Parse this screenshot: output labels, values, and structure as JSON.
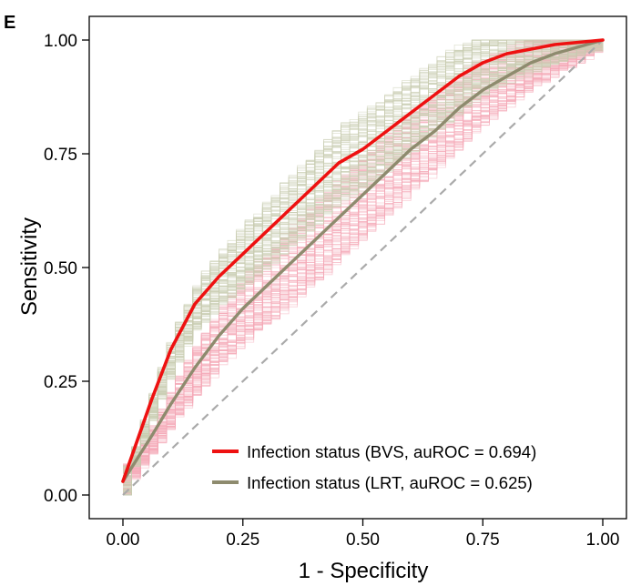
{
  "panel_label": "E",
  "colors": {
    "bvs_line": "#ee1111",
    "bvs_bootstrap": "#f4a7b6",
    "lrt_line": "#8e8b6e",
    "lrt_bootstrap": "#c9ccb0",
    "diagonal": "#aaaaaa",
    "frame": "#000000"
  },
  "chart_data": {
    "type": "line",
    "title": "",
    "xlabel": "1 - Specificity",
    "ylabel": "Sensitivity",
    "xlim": [
      0,
      1
    ],
    "ylim": [
      0,
      1
    ],
    "x_ticks": [
      0,
      0.25,
      0.5,
      0.75,
      1
    ],
    "y_ticks": [
      0,
      0.25,
      0.5,
      0.75,
      1
    ],
    "x_tick_labels": [
      "0.00",
      "0.25",
      "0.50",
      "0.75",
      "1.00"
    ],
    "y_tick_labels": [
      "0.00",
      "0.25",
      "0.50",
      "0.75",
      "1.00"
    ],
    "grid": false,
    "legend_position": "bottom-right",
    "series": [
      {
        "name": "Infection status (BVS, auROC = 0.694)",
        "color": "#ee1111",
        "x": [
          0,
          0.03,
          0.06,
          0.1,
          0.15,
          0.2,
          0.25,
          0.3,
          0.35,
          0.4,
          0.45,
          0.5,
          0.55,
          0.6,
          0.65,
          0.7,
          0.75,
          0.8,
          0.85,
          0.9,
          0.95,
          1
        ],
        "y": [
          0.03,
          0.12,
          0.21,
          0.32,
          0.42,
          0.48,
          0.53,
          0.58,
          0.63,
          0.68,
          0.73,
          0.76,
          0.8,
          0.84,
          0.88,
          0.92,
          0.95,
          0.97,
          0.98,
          0.99,
          0.995,
          1
        ],
        "bootstrap_spread": 0.07
      },
      {
        "name": "Infection status (LRT, auROC = 0.625)",
        "color": "#8e8b6e",
        "x": [
          0,
          0.03,
          0.06,
          0.1,
          0.15,
          0.2,
          0.25,
          0.3,
          0.35,
          0.4,
          0.45,
          0.5,
          0.55,
          0.6,
          0.65,
          0.7,
          0.75,
          0.8,
          0.85,
          0.9,
          0.95,
          1
        ],
        "y": [
          0.03,
          0.08,
          0.13,
          0.2,
          0.28,
          0.35,
          0.41,
          0.46,
          0.51,
          0.56,
          0.61,
          0.66,
          0.71,
          0.76,
          0.8,
          0.85,
          0.89,
          0.92,
          0.95,
          0.97,
          0.985,
          1
        ],
        "bootstrap_spread": 0.08
      }
    ],
    "reference_line": {
      "x": [
        0,
        1
      ],
      "y": [
        0,
        1
      ],
      "style": "dashed"
    }
  }
}
